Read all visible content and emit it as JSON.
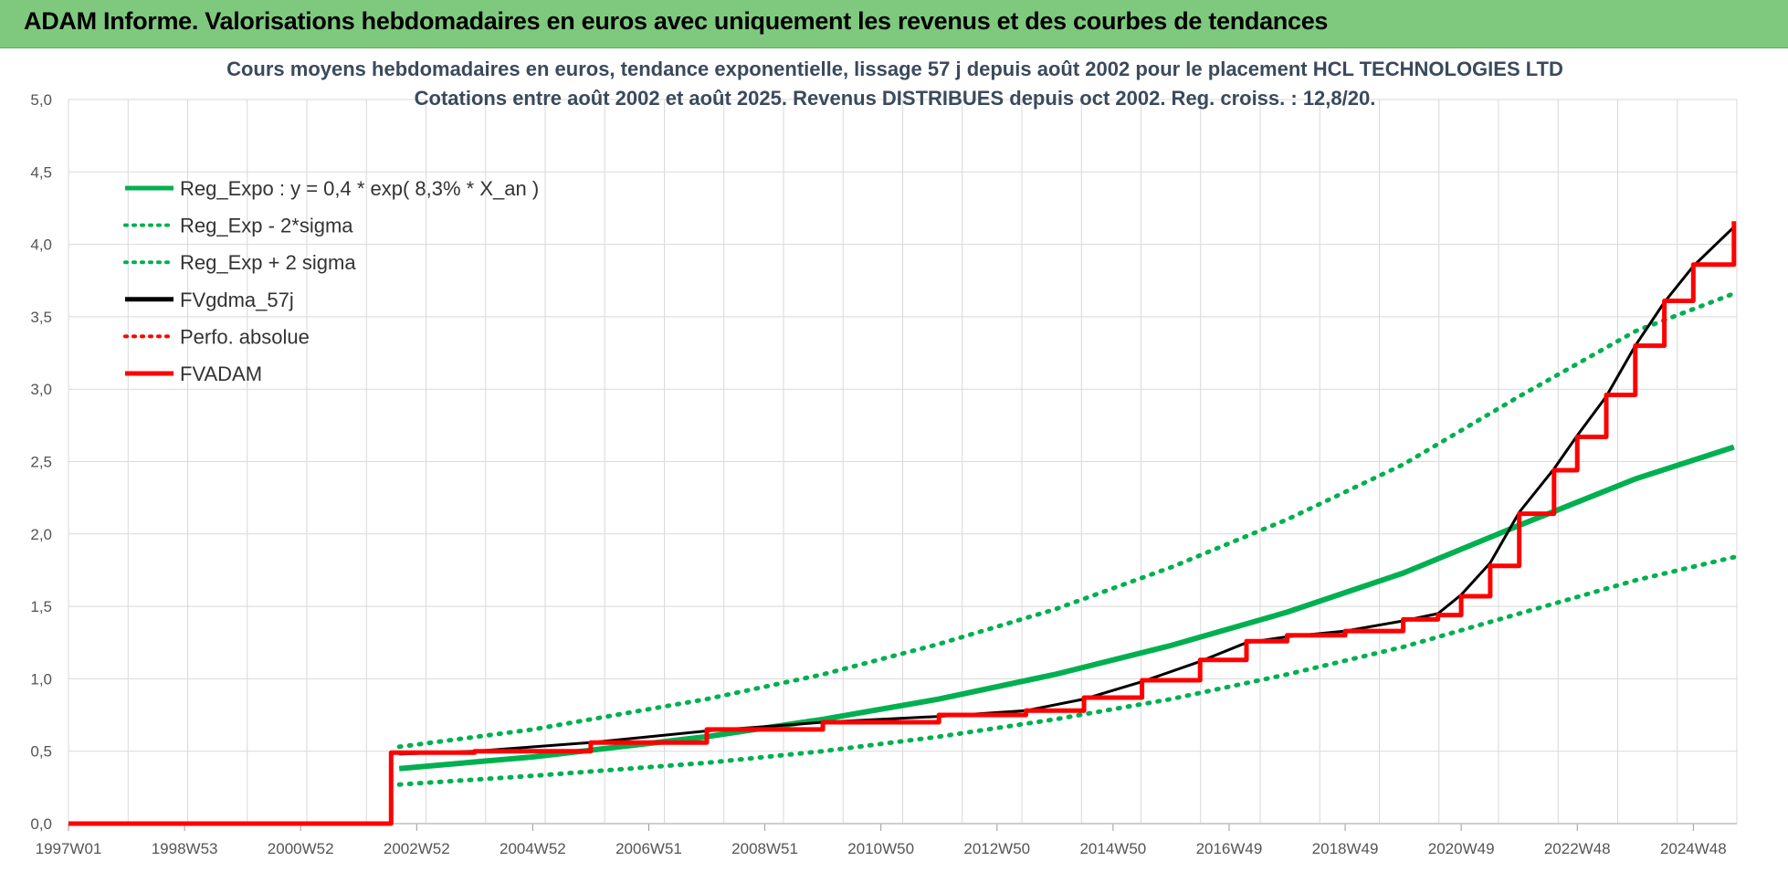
{
  "header": {
    "title": "ADAM Informe. Valorisations hebdomadaires en euros avec uniquement les revenus et des courbes de tendances"
  },
  "chart_data": {
    "type": "line",
    "title_line1": "Cours moyens hebdomadaires en euros, tendance exponentielle, lissage 57 j depuis août 2002 pour le placement  HCL TECHNOLOGIES LTD",
    "title_line2": "Cotations entre août 2002 et août 2025. Revenus DISTRIBUES depuis oct 2002. Reg. croiss. : 12,8/20.",
    "xlabel": "",
    "ylabel": "",
    "ylim": [
      0,
      5
    ],
    "xlim": [
      1997.0,
      2025.75
    ],
    "y_ticks": [
      "0,0",
      "0,5",
      "1,0",
      "1,5",
      "2,0",
      "2,5",
      "3,0",
      "3,5",
      "4,0",
      "4,5",
      "5,0"
    ],
    "x_ticks": [
      "1997W01",
      "1998W53",
      "2000W52",
      "2002W52",
      "2004W52",
      "2006W51",
      "2008W51",
      "2010W50",
      "2012W50",
      "2014W50",
      "2016W49",
      "2018W49",
      "2020W49",
      "2022W48",
      "2024W48"
    ],
    "grid": true,
    "legend_position": "top-left",
    "colors": {
      "green": "#00b050",
      "red": "#ff0000",
      "black": "#000000"
    },
    "series": [
      {
        "name": "Reg_Expo : y = 0,4 * exp( 8,3% *  X_an )",
        "style": "solid",
        "color": "#00b050",
        "points": [
          [
            2002.7,
            0.38
          ],
          [
            2005,
            0.46
          ],
          [
            2008,
            0.6
          ],
          [
            2010,
            0.72
          ],
          [
            2012,
            0.86
          ],
          [
            2014,
            1.03
          ],
          [
            2016,
            1.23
          ],
          [
            2018,
            1.46
          ],
          [
            2020,
            1.73
          ],
          [
            2022,
            2.06
          ],
          [
            2024,
            2.38
          ],
          [
            2025.7,
            2.6
          ]
        ]
      },
      {
        "name": "Reg_Exp - 2*sigma",
        "style": "dotted",
        "color": "#00b050",
        "points": [
          [
            2002.7,
            0.27
          ],
          [
            2005,
            0.33
          ],
          [
            2008,
            0.42
          ],
          [
            2010,
            0.5
          ],
          [
            2012,
            0.6
          ],
          [
            2014,
            0.72
          ],
          [
            2016,
            0.86
          ],
          [
            2018,
            1.03
          ],
          [
            2020,
            1.22
          ],
          [
            2022,
            1.45
          ],
          [
            2024,
            1.68
          ],
          [
            2025.7,
            1.84
          ]
        ]
      },
      {
        "name": "Reg_Exp + 2 sigma",
        "style": "dotted",
        "color": "#00b050",
        "points": [
          [
            2002.7,
            0.53
          ],
          [
            2005,
            0.65
          ],
          [
            2008,
            0.86
          ],
          [
            2010,
            1.03
          ],
          [
            2012,
            1.24
          ],
          [
            2014,
            1.48
          ],
          [
            2016,
            1.77
          ],
          [
            2018,
            2.1
          ],
          [
            2020,
            2.48
          ],
          [
            2022,
            2.95
          ],
          [
            2024,
            3.4
          ],
          [
            2025.7,
            3.66
          ]
        ]
      },
      {
        "name": "FVgdma_57j",
        "style": "solid",
        "color": "#000000",
        "points": [
          [
            2002.7,
            0.48
          ],
          [
            2004,
            0.5
          ],
          [
            2006,
            0.56
          ],
          [
            2008,
            0.64
          ],
          [
            2010,
            0.7
          ],
          [
            2012,
            0.74
          ],
          [
            2013.5,
            0.78
          ],
          [
            2014.5,
            0.86
          ],
          [
            2015.5,
            0.98
          ],
          [
            2016.5,
            1.12
          ],
          [
            2017.3,
            1.25
          ],
          [
            2018,
            1.29
          ],
          [
            2019,
            1.33
          ],
          [
            2020,
            1.4
          ],
          [
            2020.6,
            1.45
          ],
          [
            2021,
            1.58
          ],
          [
            2021.5,
            1.8
          ],
          [
            2022,
            2.15
          ],
          [
            2022.6,
            2.45
          ],
          [
            2023,
            2.68
          ],
          [
            2023.5,
            2.95
          ],
          [
            2024,
            3.3
          ],
          [
            2024.5,
            3.6
          ],
          [
            2025,
            3.85
          ],
          [
            2025.7,
            4.12
          ]
        ]
      },
      {
        "name": "Perfo. absolue",
        "style": "dotted",
        "color": "#ff0000",
        "points": []
      },
      {
        "name": "FVADAM",
        "style": "solid",
        "color": "#ff0000",
        "points": [
          [
            1997.0,
            0.0
          ],
          [
            2002.55,
            0.0
          ],
          [
            2002.56,
            0.49
          ],
          [
            2004,
            0.5
          ],
          [
            2006,
            0.56
          ],
          [
            2008,
            0.65
          ],
          [
            2010,
            0.7
          ],
          [
            2012,
            0.75
          ],
          [
            2013.5,
            0.78
          ],
          [
            2014.5,
            0.87
          ],
          [
            2015.5,
            0.99
          ],
          [
            2016.5,
            1.13
          ],
          [
            2017.3,
            1.26
          ],
          [
            2018,
            1.3
          ],
          [
            2019,
            1.33
          ],
          [
            2020,
            1.41
          ],
          [
            2020.6,
            1.44
          ],
          [
            2021,
            1.57
          ],
          [
            2021.5,
            1.78
          ],
          [
            2022,
            2.14
          ],
          [
            2022.6,
            2.44
          ],
          [
            2023,
            2.67
          ],
          [
            2023.5,
            2.96
          ],
          [
            2024,
            3.3
          ],
          [
            2024.5,
            3.61
          ],
          [
            2025,
            3.86
          ],
          [
            2025.7,
            4.16
          ]
        ]
      }
    ]
  }
}
